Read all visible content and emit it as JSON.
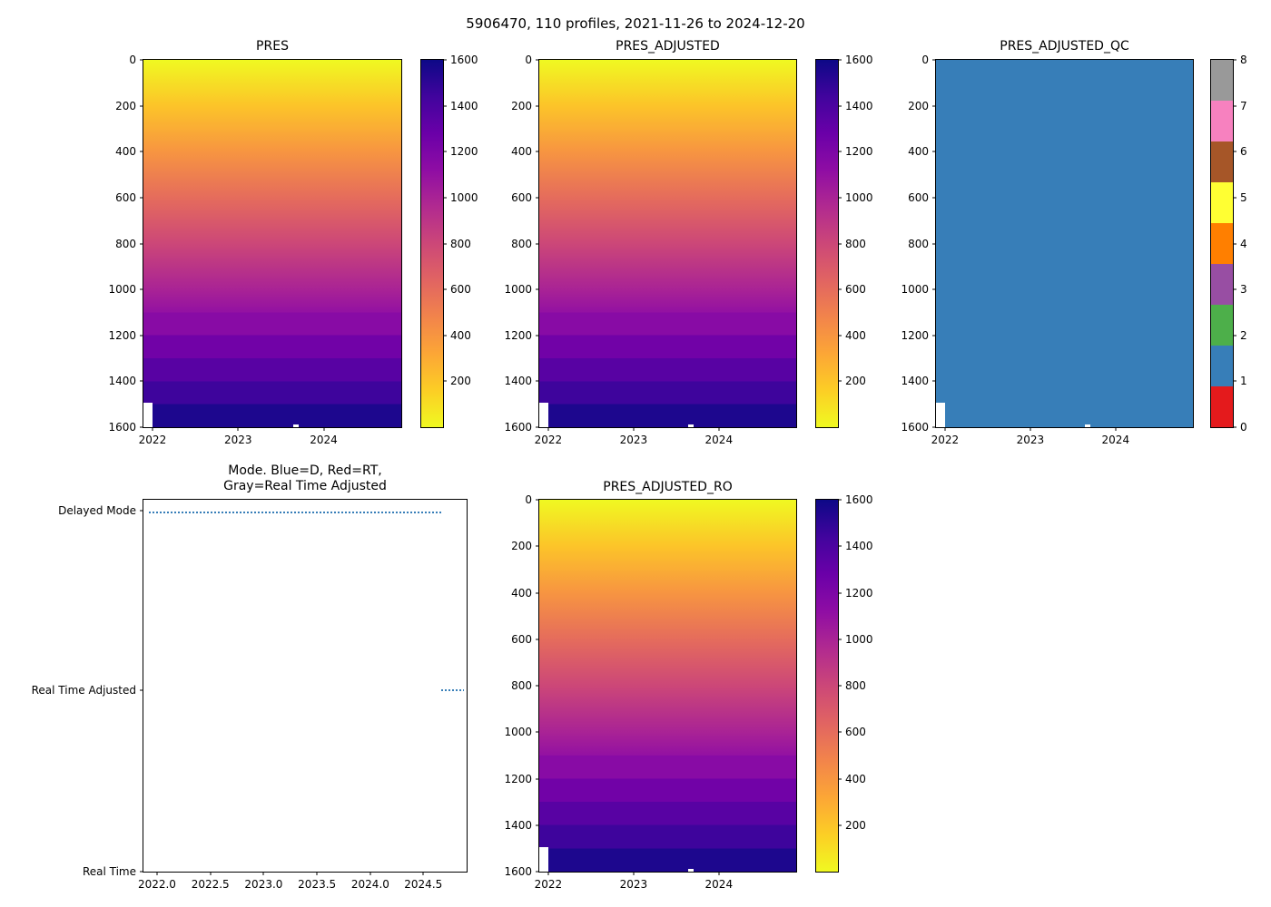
{
  "figure": {
    "title": "5906470, 110 profiles, 2021-11-26 to 2024-12-20"
  },
  "colors": {
    "qc_good_fill": "#377eb8",
    "mode_marker": "#377eb8",
    "qc_palette": [
      "#e41a1c",
      "#377eb8",
      "#4daf4a",
      "#984ea3",
      "#ff7f00",
      "#ffff33",
      "#a65628",
      "#f781bf",
      "#999999"
    ]
  },
  "panels": {
    "pres": {
      "title": "PRES",
      "yticks": [
        "0",
        "200",
        "400",
        "600",
        "800",
        "1000",
        "1200",
        "1400",
        "1600"
      ],
      "xticks": [
        "2022",
        "2023",
        "2024"
      ],
      "cbar_ticks": [
        "1600",
        "1400",
        "1200",
        "1000",
        "800",
        "600",
        "400",
        "200"
      ]
    },
    "pres_adjusted": {
      "title": "PRES_ADJUSTED",
      "yticks": [
        "0",
        "200",
        "400",
        "600",
        "800",
        "1000",
        "1200",
        "1400",
        "1600"
      ],
      "xticks": [
        "2022",
        "2023",
        "2024"
      ],
      "cbar_ticks": [
        "1600",
        "1400",
        "1200",
        "1000",
        "800",
        "600",
        "400",
        "200"
      ]
    },
    "pres_adjusted_qc": {
      "title": "PRES_ADJUSTED_QC",
      "yticks": [
        "0",
        "200",
        "400",
        "600",
        "800",
        "1000",
        "1200",
        "1400",
        "1600"
      ],
      "xticks": [
        "2022",
        "2023",
        "2024"
      ],
      "cbar_ticks": [
        "8",
        "7",
        "6",
        "5",
        "4",
        "3",
        "2",
        "1",
        "0"
      ]
    },
    "mode": {
      "title_line1": "Mode. Blue=D, Red=RT,",
      "title_line2": "Gray=Real Time Adjusted",
      "yticks": [
        "Delayed Mode",
        "Real Time Adjusted",
        "Real Time"
      ],
      "xticks": [
        "2022.0",
        "2022.5",
        "2023.0",
        "2023.5",
        "2024.0",
        "2024.5"
      ]
    },
    "pres_adjusted_ro": {
      "title": "PRES_ADJUSTED_RO",
      "yticks": [
        "0",
        "200",
        "400",
        "600",
        "800",
        "1000",
        "1200",
        "1400",
        "1600"
      ],
      "xticks": [
        "2022",
        "2023",
        "2024"
      ],
      "cbar_ticks": [
        "1600",
        "1400",
        "1200",
        "1000",
        "800",
        "600",
        "400",
        "200"
      ]
    }
  },
  "chart_data": [
    {
      "type": "heatmap",
      "title": "PRES",
      "x_range": [
        2021.9,
        2024.95
      ],
      "x_ticks": [
        2022,
        2023,
        2024
      ],
      "y_range": [
        0,
        1600
      ],
      "y_inverted": true,
      "colormap": "plasma reversed: yellow at 0 dbar (surface) to dark blue at 1600 dbar",
      "colorbar_range": [
        0,
        1600
      ],
      "colorbar_ticks": [
        200,
        400,
        600,
        800,
        1000,
        1200,
        1400,
        1600
      ],
      "description": "Pressure vs time section for 110 profiles, 2021-11-26 to 2024-12-20; values increase smoothly with depth 0-1600 dbar with contour bands every 100 dbar below 1100; first profile only reaches ~1480 dbar leaving a white gap at bottom-left"
    },
    {
      "type": "heatmap",
      "title": "PRES_ADJUSTED",
      "x_range": [
        2021.9,
        2024.95
      ],
      "x_ticks": [
        2022,
        2023,
        2024
      ],
      "y_range": [
        0,
        1600
      ],
      "y_inverted": true,
      "colormap": "plasma reversed: yellow at 0 dbar to dark blue at 1600 dbar",
      "colorbar_range": [
        0,
        1600
      ],
      "colorbar_ticks": [
        200,
        400,
        600,
        800,
        1000,
        1200,
        1400,
        1600
      ],
      "description": "Adjusted pressure vs time; visually identical to PRES panel"
    },
    {
      "type": "heatmap",
      "title": "PRES_ADJUSTED_QC",
      "x_range": [
        2021.9,
        2024.95
      ],
      "x_ticks": [
        2022,
        2023,
        2024
      ],
      "y_range": [
        0,
        1600
      ],
      "y_inverted": true,
      "values": "QC flag = 1 (good data, blue) for all profiles and depths",
      "colorbar_ticks": [
        0,
        1,
        2,
        3,
        4,
        5,
        6,
        7,
        8
      ],
      "colorbar_colors": [
        "#e41a1c",
        "#377eb8",
        "#4daf4a",
        "#984ea3",
        "#ff7f00",
        "#ffff33",
        "#a65628",
        "#f781bf",
        "#999999"
      ]
    },
    {
      "type": "scatter",
      "title": "Mode. Blue=D, Red=RT, Gray=Real Time Adjusted",
      "x_ticks": [
        2022.0,
        2022.5,
        2023.0,
        2023.5,
        2024.0,
        2024.5
      ],
      "y_categories": [
        "Real Time",
        "Real Time Adjusted",
        "Delayed Mode"
      ],
      "marker_color": "#377eb8",
      "series": [
        {
          "name": "Delayed Mode profiles",
          "y": "Delayed Mode",
          "x_start": 2022.0,
          "x_end": 2024.55
        },
        {
          "name": "Real Time Adjusted profiles",
          "y": "Real Time Adjusted",
          "x_start": 2024.55,
          "x_end": 2024.85
        }
      ]
    },
    {
      "type": "heatmap",
      "title": "PRES_ADJUSTED_RO",
      "x_range": [
        2021.9,
        2024.95
      ],
      "x_ticks": [
        2022,
        2023,
        2024
      ],
      "y_range": [
        0,
        1600
      ],
      "y_inverted": true,
      "colormap": "plasma reversed: yellow at 0 dbar to dark blue at 1600 dbar",
      "colorbar_range": [
        0,
        1600
      ],
      "colorbar_ticks": [
        200,
        400,
        600,
        800,
        1000,
        1200,
        1400,
        1600
      ],
      "description": "Raw-output adjusted pressure vs time; visually identical to PRES panel"
    }
  ]
}
